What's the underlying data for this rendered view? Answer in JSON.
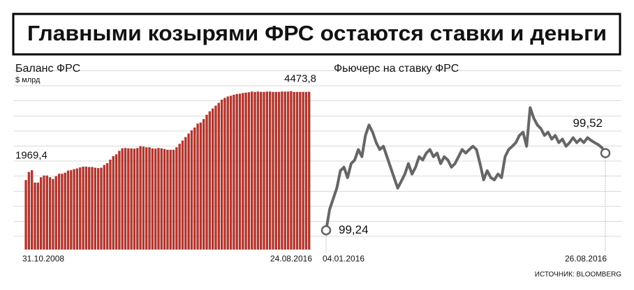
{
  "title": "Главными козырями ФРС остаются ставки и деньги",
  "source": "ИСТОЧНИК: BLOOMBERG",
  "chart_data": [
    {
      "type": "bar",
      "title": "Баланс ФРС",
      "y_label": "$ млрд",
      "color": "#b3352d",
      "ylim": [
        0,
        5000
      ],
      "categories": [
        "31.10.2008",
        null,
        null,
        null,
        null,
        null,
        null,
        null,
        null,
        null,
        null,
        null,
        null,
        null,
        null,
        null,
        null,
        null,
        null,
        null,
        null,
        null,
        null,
        null,
        null,
        null,
        null,
        null,
        null,
        null,
        null,
        null,
        null,
        null,
        null,
        null,
        null,
        null,
        null,
        null,
        null,
        null,
        null,
        null,
        null,
        null,
        null,
        null,
        null,
        null,
        null,
        null,
        null,
        null,
        null,
        null,
        null,
        null,
        null,
        null,
        null,
        null,
        null,
        null,
        null,
        null,
        null,
        null,
        null,
        null,
        null,
        null,
        null,
        null,
        null,
        null,
        null,
        null,
        null,
        null,
        null,
        null,
        null,
        null,
        null,
        null,
        null,
        null,
        null,
        null,
        null,
        null,
        null,
        null,
        "24.08.2016"
      ],
      "values": [
        1969.4,
        2200,
        2250,
        1900,
        1900,
        2050,
        2100,
        2100,
        2050,
        2000,
        2080,
        2150,
        2150,
        2180,
        2240,
        2250,
        2280,
        2300,
        2330,
        2350,
        2350,
        2340,
        2340,
        2320,
        2310,
        2320,
        2400,
        2450,
        2550,
        2650,
        2700,
        2800,
        2870,
        2880,
        2870,
        2870,
        2860,
        2880,
        2930,
        2920,
        2900,
        2900,
        2870,
        2860,
        2880,
        2870,
        2850,
        2830,
        2830,
        2830,
        2900,
        3000,
        3090,
        3190,
        3290,
        3380,
        3460,
        3570,
        3600,
        3700,
        3820,
        3920,
        4000,
        4080,
        4160,
        4250,
        4300,
        4340,
        4360,
        4390,
        4410,
        4420,
        4440,
        4450,
        4460,
        4480,
        4470,
        4480,
        4470,
        4470,
        4480,
        4480,
        4470,
        4470,
        4470,
        4480,
        4480,
        4480,
        4490,
        4470,
        4470,
        4470,
        4470,
        4470,
        4473.8
      ],
      "value_labels": [
        "1969,4",
        null,
        null,
        null,
        null,
        null,
        null,
        null,
        null,
        null,
        null,
        null,
        null,
        null,
        null,
        null,
        null,
        null,
        null,
        null,
        null,
        null,
        null,
        null,
        null,
        null,
        null,
        null,
        null,
        null,
        null,
        null,
        null,
        null,
        null,
        null,
        null,
        null,
        null,
        null,
        null,
        null,
        null,
        null,
        null,
        null,
        null,
        null,
        null,
        null,
        null,
        null,
        null,
        null,
        null,
        null,
        null,
        null,
        null,
        null,
        null,
        null,
        null,
        null,
        null,
        null,
        null,
        null,
        null,
        null,
        null,
        null,
        null,
        null,
        null,
        null,
        null,
        null,
        null,
        null,
        null,
        null,
        null,
        null,
        null,
        null,
        null,
        null,
        null,
        null,
        null,
        null,
        null,
        null,
        "4473,8"
      ]
    },
    {
      "type": "line",
      "title": "Фьючерс на ставку ФРС",
      "color": "#666666",
      "ylim": [
        99.17,
        99.81
      ],
      "categories": [
        "04.01.2016",
        null,
        null,
        null,
        null,
        null,
        null,
        null,
        null,
        null,
        null,
        null,
        null,
        null,
        null,
        null,
        null,
        null,
        null,
        null,
        null,
        null,
        null,
        null,
        null,
        null,
        null,
        null,
        null,
        null,
        null,
        null,
        null,
        null,
        null,
        null,
        null,
        null,
        null,
        null,
        null,
        null,
        null,
        null,
        null,
        null,
        null,
        null,
        null,
        null,
        null,
        null,
        null,
        null,
        null,
        null,
        null,
        null,
        null,
        null,
        null,
        null,
        null,
        null,
        null,
        null,
        null,
        null,
        null,
        null,
        null,
        null,
        null,
        null,
        null,
        null,
        null,
        null,
        "26.08.2016"
      ],
      "values": [
        99.24,
        99.316,
        99.355,
        99.393,
        99.456,
        99.469,
        99.431,
        99.482,
        99.495,
        99.533,
        99.507,
        99.584,
        99.622,
        99.596,
        99.558,
        99.533,
        99.545,
        99.507,
        99.469,
        99.431,
        99.393,
        99.418,
        99.444,
        99.482,
        99.444,
        99.469,
        99.507,
        99.495,
        99.52,
        99.533,
        99.507,
        99.52,
        99.482,
        99.507,
        99.495,
        99.469,
        99.482,
        99.507,
        99.533,
        99.52,
        99.533,
        99.545,
        99.533,
        99.482,
        99.423,
        99.456,
        99.431,
        99.423,
        99.444,
        99.431,
        99.507,
        99.533,
        99.545,
        99.558,
        99.584,
        99.596,
        99.545,
        99.685,
        99.647,
        99.622,
        99.609,
        99.584,
        99.596,
        99.571,
        99.584,
        99.558,
        99.571,
        99.545,
        99.558,
        99.576,
        99.558,
        99.571,
        99.558,
        99.576,
        99.566,
        99.558,
        99.551,
        99.54,
        99.52
      ],
      "value_labels": [
        "99,24",
        null,
        null,
        null,
        null,
        null,
        null,
        null,
        null,
        null,
        null,
        null,
        null,
        null,
        null,
        null,
        null,
        null,
        null,
        null,
        null,
        null,
        null,
        null,
        null,
        null,
        null,
        null,
        null,
        null,
        null,
        null,
        null,
        null,
        null,
        null,
        null,
        null,
        null,
        null,
        null,
        null,
        null,
        null,
        null,
        null,
        null,
        null,
        null,
        null,
        null,
        null,
        null,
        null,
        null,
        null,
        null,
        null,
        null,
        null,
        null,
        null,
        null,
        null,
        null,
        null,
        null,
        null,
        null,
        null,
        null,
        null,
        null,
        null,
        null,
        null,
        null,
        null,
        "99,52"
      ]
    }
  ]
}
